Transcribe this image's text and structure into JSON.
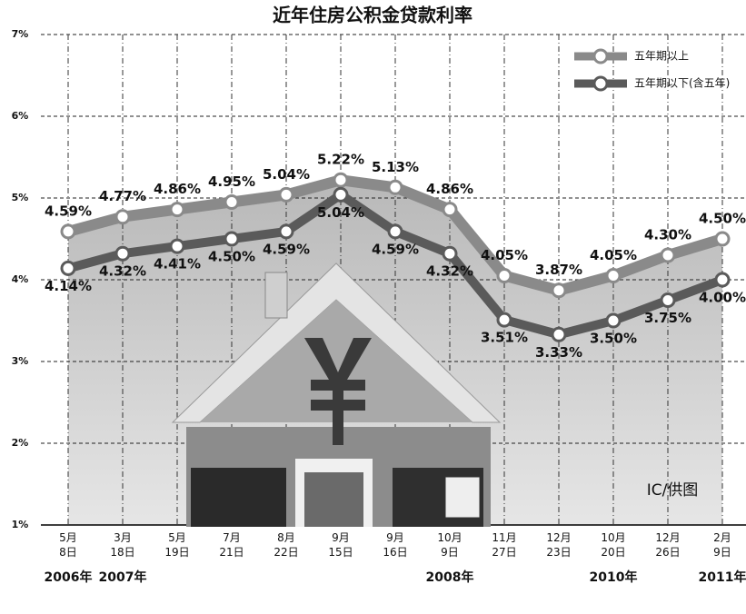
{
  "chart_data": {
    "type": "line",
    "title": "近年住房公积金贷款利率",
    "categories": [
      "5月 8日",
      "3月 18日",
      "5月 19日",
      "7月 21日",
      "8月 22日",
      "9月 15日",
      "9月 16日",
      "10月 9日",
      "11月 27日",
      "12月 23日",
      "10月 20日",
      "12月 26日",
      "2月 9日"
    ],
    "years": [
      "2006年",
      "2007年",
      null,
      null,
      null,
      null,
      null,
      "2008年",
      null,
      null,
      "2010年",
      null,
      "2011年"
    ],
    "series": [
      {
        "name": "五年期以上",
        "color": "#8a8a8a",
        "values": [
          4.59,
          4.77,
          4.86,
          4.95,
          5.04,
          5.22,
          5.13,
          4.86,
          4.05,
          3.87,
          4.05,
          4.3,
          4.5
        ],
        "value_labels": [
          "4.59%",
          "4.77%",
          "4.86%",
          "4.95%",
          "5.04%",
          "5.22%",
          "5.13%",
          "4.86%",
          "4.05%",
          "3.87%",
          "4.05%",
          "4.30%",
          "4.50%"
        ]
      },
      {
        "name": "五年期以下(含五年)",
        "color": "#5a5a5a",
        "values": [
          4.14,
          4.32,
          4.41,
          4.5,
          4.59,
          5.04,
          4.59,
          4.32,
          3.51,
          3.33,
          3.5,
          3.75,
          4.0
        ],
        "value_labels": [
          "4.14%",
          "4.32%",
          "4.41%",
          "4.50%",
          "4.59%",
          "5.04%",
          "4.59%",
          "4.32%",
          "3.51%",
          "3.33%",
          "3.50%",
          "3.75%",
          "4.00%"
        ]
      }
    ],
    "ylim": [
      1,
      7
    ],
    "yticks": [
      {
        "value": 1,
        "label": "1%"
      },
      {
        "value": 2,
        "label": "2%"
      },
      {
        "value": 3,
        "label": "3%"
      },
      {
        "value": 4,
        "label": "4%"
      },
      {
        "value": 5,
        "label": "5%"
      },
      {
        "value": 6,
        "label": "6%"
      },
      {
        "value": 7,
        "label": "7%"
      }
    ],
    "grid": true,
    "legend": "top-right",
    "credit": "IC/供图"
  }
}
